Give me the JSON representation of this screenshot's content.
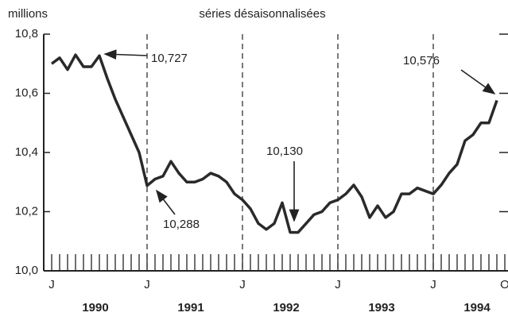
{
  "chart_data": {
    "type": "line",
    "title": "séries désaisonnalisées",
    "y_unit": "millions",
    "categories": [
      "J",
      null,
      null,
      null,
      null,
      null,
      null,
      null,
      null,
      null,
      null,
      null,
      "J",
      null,
      null,
      null,
      null,
      null,
      null,
      null,
      null,
      null,
      null,
      null,
      "J",
      null,
      null,
      null,
      null,
      null,
      null,
      null,
      null,
      null,
      null,
      null,
      "J",
      null,
      null,
      null,
      null,
      null,
      null,
      null,
      null,
      null,
      null,
      null,
      "J",
      null,
      null,
      null,
      null,
      null,
      null,
      null,
      null,
      "O"
    ],
    "year_labels": [
      "1990",
      "1991",
      "1992",
      "1993",
      "1994"
    ],
    "series": [
      {
        "name": null,
        "color": "#2a2a2a",
        "values": [
          10.7,
          10.72,
          10.68,
          10.73,
          10.69,
          10.69,
          10.727,
          10.65,
          10.58,
          10.52,
          10.46,
          10.4,
          10.288,
          10.31,
          10.32,
          10.37,
          10.33,
          10.3,
          10.3,
          10.31,
          10.33,
          10.32,
          10.3,
          10.26,
          10.24,
          10.21,
          10.16,
          10.14,
          10.16,
          10.23,
          10.13,
          10.13,
          10.16,
          10.19,
          10.2,
          10.23,
          10.24,
          10.26,
          10.29,
          10.25,
          10.18,
          10.22,
          10.18,
          10.2,
          10.26,
          10.26,
          10.28,
          10.27,
          10.26,
          10.29,
          10.33,
          10.36,
          10.44,
          10.46,
          10.5,
          10.5,
          10.576,
          null
        ]
      }
    ],
    "annotations": [
      "10,727",
      "10,288",
      "10,130",
      "10,576"
    ],
    "ylim": [
      10.0,
      10.8
    ],
    "yticks": [
      {
        "value": 10.0,
        "label": "10,0"
      },
      {
        "value": 10.2,
        "label": "10,2"
      },
      {
        "value": 10.4,
        "label": "10,4"
      },
      {
        "value": 10.6,
        "label": "10,6"
      },
      {
        "value": 10.8,
        "label": "10,8"
      }
    ],
    "grid": false
  }
}
